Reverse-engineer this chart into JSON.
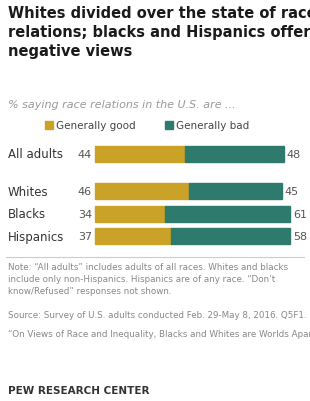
{
  "title": "Whites divided over the state of race\nrelations; blacks and Hispanics offer\nnegative views",
  "subtitle": "% saying race relations in the U.S. are ...",
  "categories": [
    "All adults",
    "Whites",
    "Blacks",
    "Hispanics"
  ],
  "good_values": [
    44,
    46,
    34,
    37
  ],
  "bad_values": [
    48,
    45,
    61,
    58
  ],
  "color_good": "#C9A227",
  "color_bad": "#2E7B6E",
  "legend_good": "Generally good",
  "legend_bad": "Generally bad",
  "note1": "Note: “All adults” includes adults of all races. Whites and blacks include only non-Hispanics. Hispanics are of any race. “Don’t know/Refused” responses not shown.",
  "note2": "Source: Survey of U.S. adults conducted Feb. 29-May 8, 2016. Q5F1.",
  "note3": "“On Views of Race and Inequality, Blacks and Whites are Worlds Apart”",
  "footer": "PEW RESEARCH CENTER",
  "figsize": [
    3.1,
    4.02
  ],
  "dpi": 100
}
